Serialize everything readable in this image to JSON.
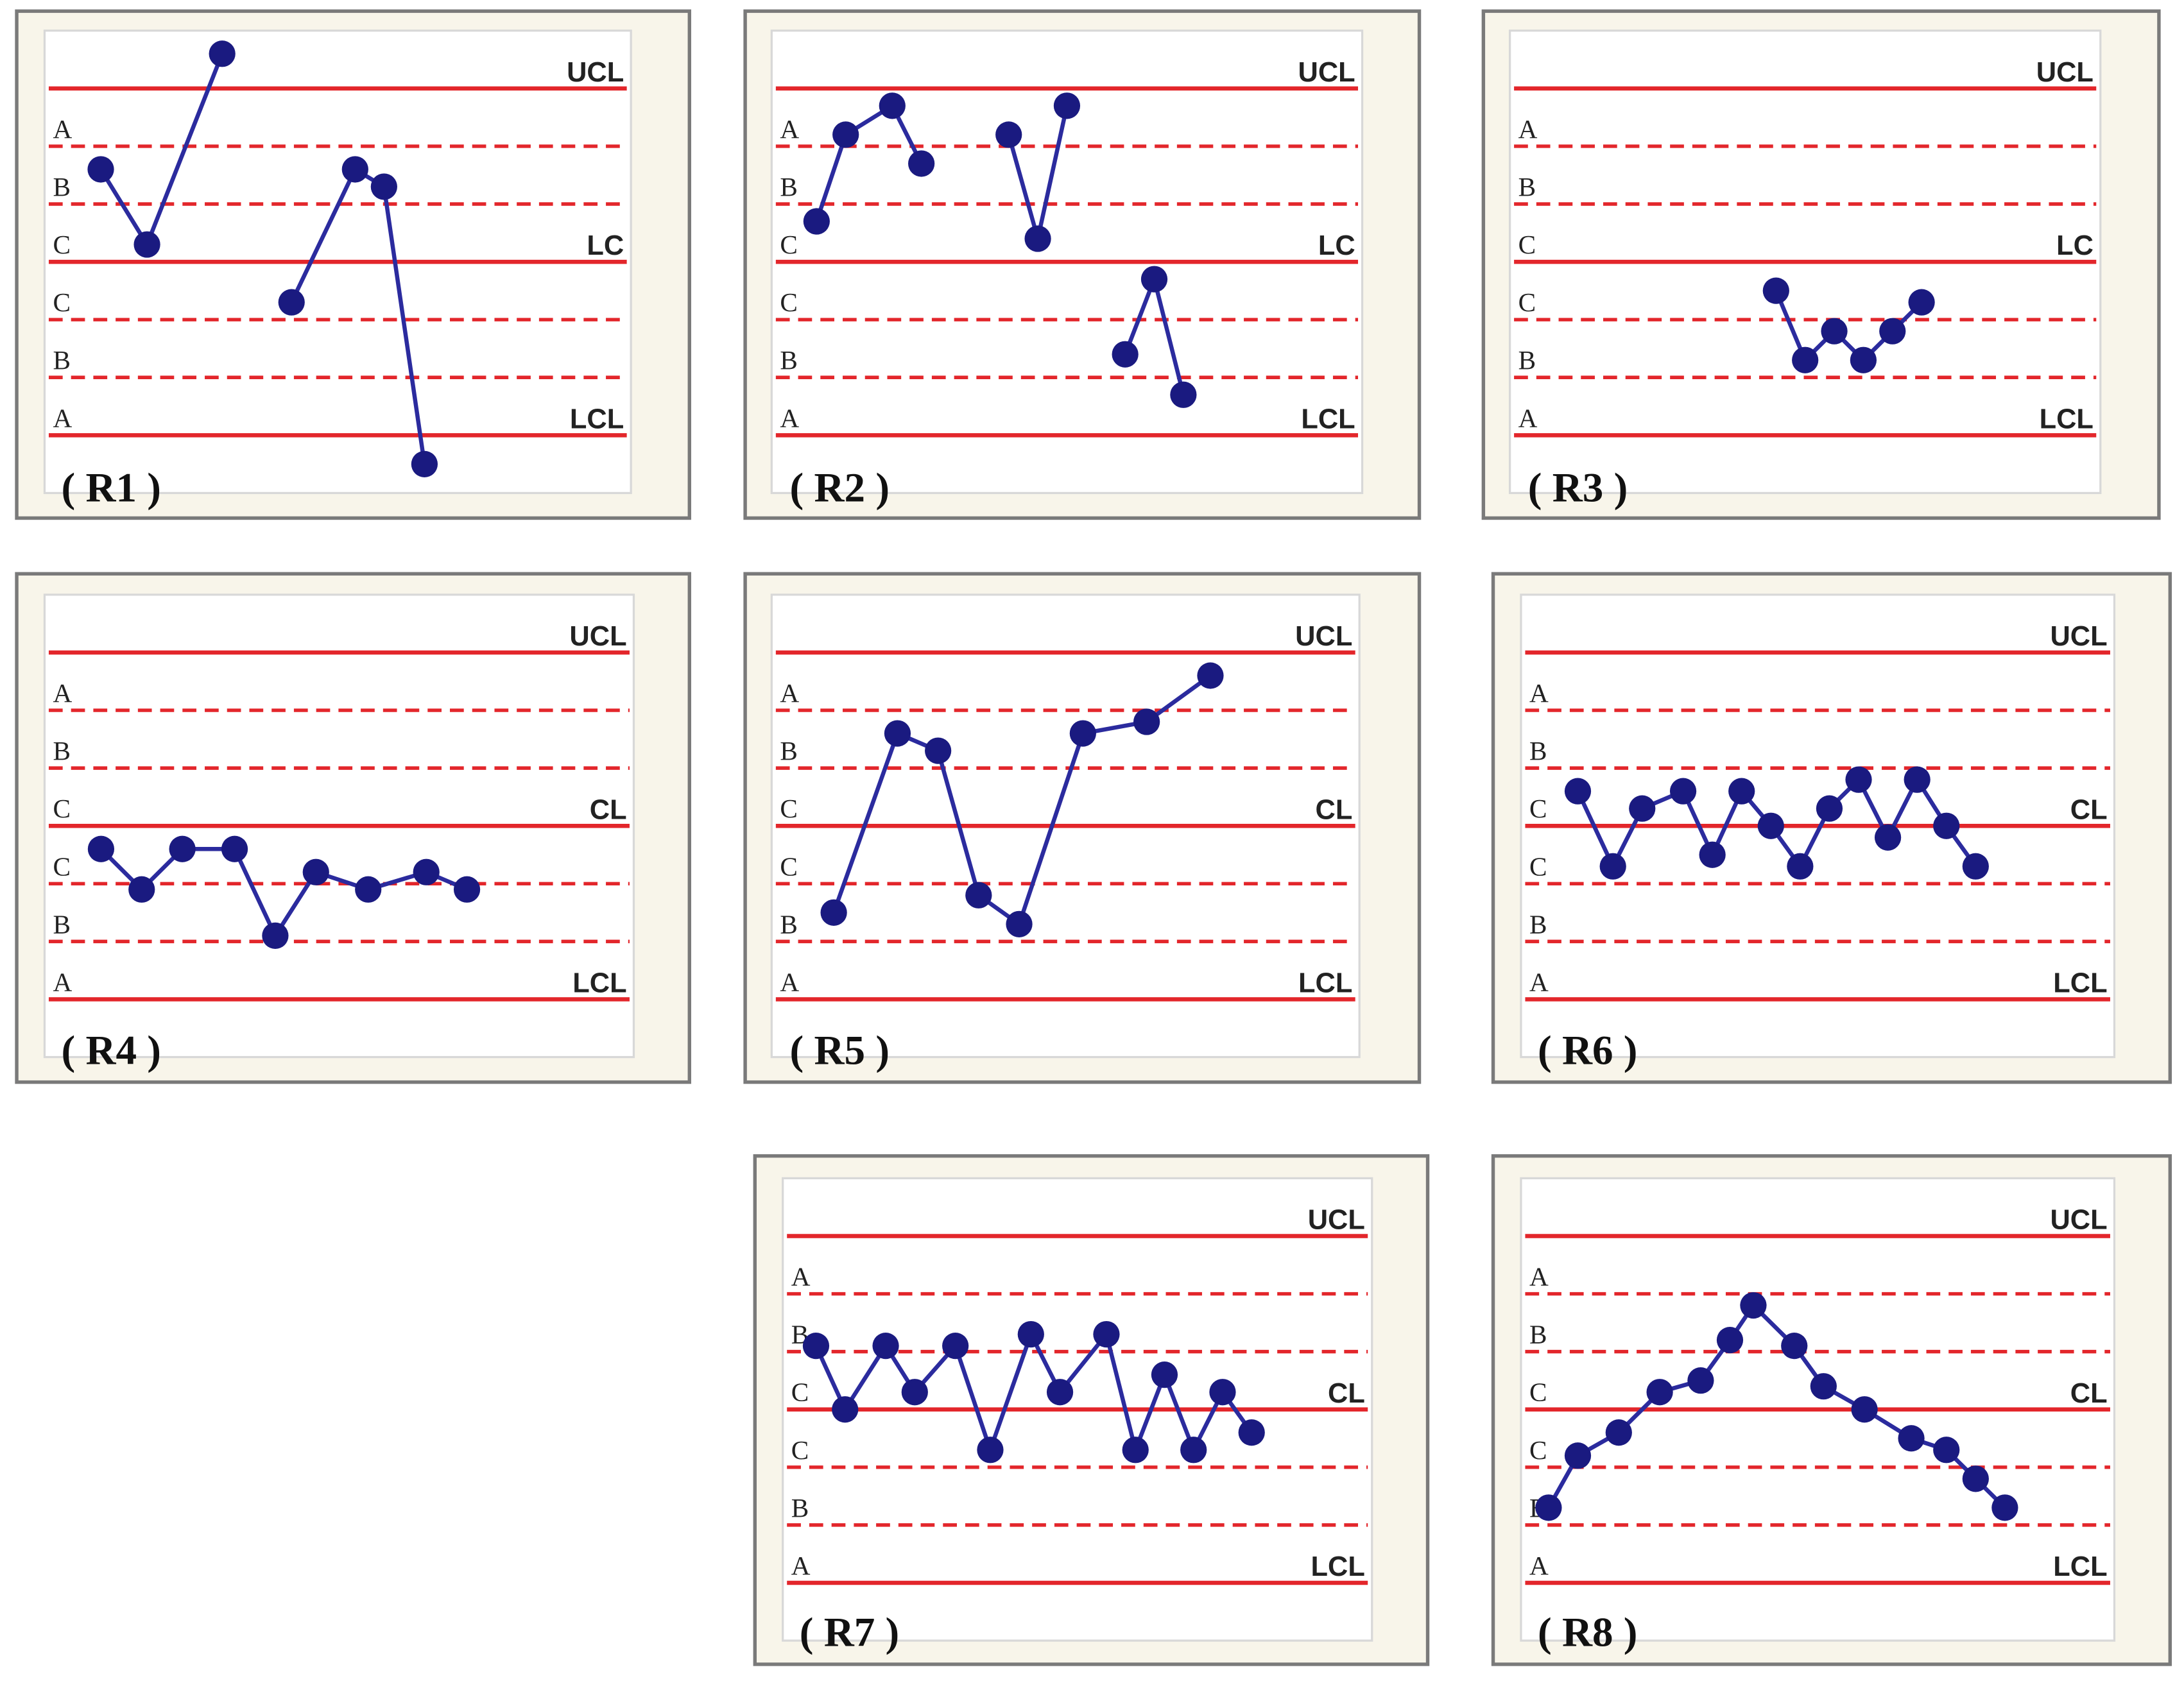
{
  "chart_data": [
    {
      "type": "line",
      "title": "( R1 )",
      "xlim": [
        0,
        100
      ],
      "ylim": [
        -4,
        4
      ],
      "yticks": [
        {
          "value": 3,
          "label": "UCL"
        },
        {
          "value": 0,
          "label": "LC"
        },
        {
          "value": -3,
          "label": "LCL"
        }
      ],
      "zone_lines": [
        2,
        1,
        -1,
        -2
      ],
      "zone_labels": [
        "A",
        "B",
        "C",
        "C",
        "B",
        "A"
      ],
      "line_color": "#e3262b",
      "color": "#1a1a80",
      "x": [
        9,
        17,
        30,
        36,
        42,
        53,
        58,
        65
      ],
      "values": [
        1.6,
        0.3,
        3.6,
        null,
        -0.7,
        1.6,
        1.3,
        -3.5
      ]
    },
    {
      "type": "line",
      "title": "( R2 )",
      "xlim": [
        0,
        100
      ],
      "ylim": [
        -4,
        4
      ],
      "yticks": [
        {
          "value": 3,
          "label": "UCL"
        },
        {
          "value": 0,
          "label": "LC"
        },
        {
          "value": -3,
          "label": "LCL"
        }
      ],
      "zone_lines": [
        2,
        1,
        -1,
        -2
      ],
      "zone_labels": [
        "A",
        "B",
        "C",
        "C",
        "B",
        "A"
      ],
      "line_color": "#e3262b",
      "color": "#1a1a80",
      "x": [
        7,
        12,
        20,
        25,
        32,
        40,
        45,
        50,
        55,
        60,
        65,
        70
      ],
      "values": [
        0.7,
        2.2,
        2.7,
        1.7,
        null,
        2.2,
        0.4,
        2.7,
        null,
        -1.6,
        -0.3,
        -2.3
      ]
    },
    {
      "type": "line",
      "title": "( R3 )",
      "xlim": [
        0,
        100
      ],
      "ylim": [
        -4,
        4
      ],
      "yticks": [
        {
          "value": 3,
          "label": "UCL"
        },
        {
          "value": 0,
          "label": "LC"
        },
        {
          "value": -3,
          "label": "LCL"
        }
      ],
      "zone_lines": [
        2,
        1,
        -1,
        -2
      ],
      "zone_labels": [
        "A",
        "B",
        "C",
        "C",
        "B",
        "A"
      ],
      "line_color": "#e3262b",
      "color": "#1a1a80",
      "x": [
        45,
        50,
        55,
        60,
        65,
        70
      ],
      "values": [
        -0.5,
        -1.7,
        -1.2,
        -1.7,
        -1.2,
        -0.7
      ]
    },
    {
      "type": "line",
      "title": "( R4 )",
      "xlim": [
        0,
        100
      ],
      "ylim": [
        -4,
        4
      ],
      "yticks": [
        {
          "value": 3,
          "label": "UCL"
        },
        {
          "value": 0,
          "label": "CL"
        },
        {
          "value": -3,
          "label": "LCL"
        }
      ],
      "zone_lines": [
        2,
        1,
        -1,
        -2
      ],
      "zone_labels": [
        "A",
        "B",
        "C",
        "C",
        "B",
        "A"
      ],
      "line_color": "#e3262b",
      "color": "#1a1a80",
      "x": [
        9,
        16,
        23,
        32,
        39,
        46,
        55,
        65,
        72
      ],
      "values": [
        -0.4,
        -1.1,
        -0.4,
        -0.4,
        -1.9,
        -0.8,
        -1.1,
        -0.8,
        -1.1
      ]
    },
    {
      "type": "line",
      "title": "( R5 )",
      "xlim": [
        0,
        100
      ],
      "ylim": [
        -4,
        4
      ],
      "yticks": [
        {
          "value": 3,
          "label": "UCL"
        },
        {
          "value": 0,
          "label": "CL"
        },
        {
          "value": -3,
          "label": "LCL"
        }
      ],
      "zone_lines": [
        2,
        1,
        -1,
        -2
      ],
      "zone_labels": [
        "A",
        "B",
        "C",
        "C",
        "B",
        "A"
      ],
      "line_color": "#e3262b",
      "color": "#1a1a80",
      "x": [
        10,
        21,
        28,
        35,
        42,
        53,
        64,
        75
      ],
      "values": [
        -1.5,
        1.6,
        1.3,
        -1.2,
        -1.7,
        1.6,
        1.8,
        2.6
      ]
    },
    {
      "type": "line",
      "title": "( R6 )",
      "xlim": [
        0,
        100
      ],
      "ylim": [
        -4,
        4
      ],
      "yticks": [
        {
          "value": 3,
          "label": "UCL"
        },
        {
          "value": 0,
          "label": "CL"
        },
        {
          "value": -3,
          "label": "LCL"
        }
      ],
      "zone_lines": [
        2,
        1,
        -1,
        -2
      ],
      "zone_labels": [
        "A",
        "B",
        "C",
        "C",
        "B",
        "A"
      ],
      "line_color": "#e3262b",
      "color": "#1a1a80",
      "x": [
        9,
        15,
        20,
        27,
        32,
        37,
        42,
        47,
        52,
        57,
        62,
        67,
        72,
        77
      ],
      "values": [
        0.6,
        -0.7,
        0.3,
        0.6,
        -0.5,
        0.6,
        0,
        -0.7,
        0.3,
        0.8,
        -0.2,
        0.8,
        0,
        -0.7
      ]
    },
    {
      "type": "line",
      "title": "( R7 )",
      "xlim": [
        0,
        100
      ],
      "ylim": [
        -4,
        4
      ],
      "yticks": [
        {
          "value": 3,
          "label": "UCL"
        },
        {
          "value": 0,
          "label": "CL"
        },
        {
          "value": -3,
          "label": "LCL"
        }
      ],
      "zone_lines": [
        2,
        1,
        -1,
        -2
      ],
      "zone_labels": [
        "A",
        "B",
        "C",
        "C",
        "B",
        "A"
      ],
      "line_color": "#e3262b",
      "color": "#1a1a80",
      "x": [
        5,
        10,
        17,
        22,
        29,
        35,
        42,
        47,
        55,
        60,
        65,
        70,
        75,
        80
      ],
      "values": [
        1.1,
        0,
        1.1,
        0.3,
        1.1,
        -0.7,
        1.3,
        0.3,
        1.3,
        -0.7,
        0.6,
        -0.7,
        0.3,
        -0.4
      ]
    },
    {
      "type": "line",
      "title": "( R8 )",
      "xlim": [
        0,
        100
      ],
      "ylim": [
        -4,
        4
      ],
      "yticks": [
        {
          "value": 3,
          "label": "UCL"
        },
        {
          "value": 0,
          "label": "CL"
        },
        {
          "value": -3,
          "label": "LCL"
        }
      ],
      "zone_lines": [
        2,
        1,
        -1,
        -2
      ],
      "zone_labels": [
        "A",
        "B",
        "C",
        "C",
        "B",
        "A"
      ],
      "line_color": "#e3262b",
      "color": "#1a1a80",
      "x": [
        4,
        9,
        16,
        23,
        30,
        35,
        39,
        46,
        51,
        58,
        66,
        72,
        77,
        82
      ],
      "values": [
        -1.7,
        -0.8,
        -0.4,
        0.3,
        0.5,
        1.2,
        1.8,
        1.1,
        0.4,
        0,
        -0.5,
        -0.7,
        -1.2,
        -1.7
      ]
    }
  ]
}
